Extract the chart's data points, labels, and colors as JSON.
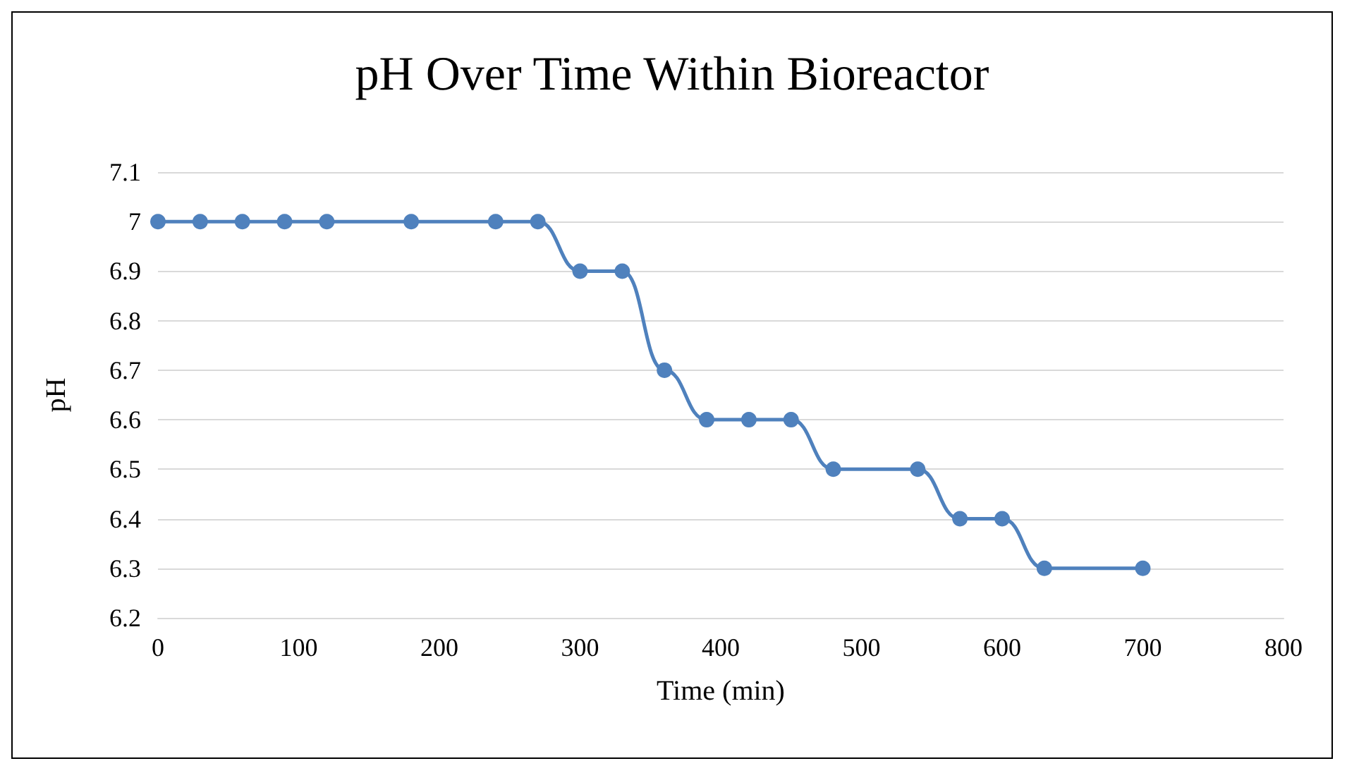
{
  "chart_data": {
    "type": "line",
    "title": "pH Over Time Within Bioreactor",
    "xlabel": "Time (min)",
    "ylabel": "pH",
    "x": [
      0,
      30,
      60,
      90,
      120,
      180,
      240,
      270,
      300,
      330,
      360,
      390,
      420,
      450,
      480,
      540,
      570,
      600,
      630,
      700
    ],
    "series": [
      {
        "color": "#4f81bd",
        "values": [
          7,
          7,
          7,
          7,
          7,
          7,
          7,
          7,
          6.9,
          6.9,
          6.7,
          6.6,
          6.6,
          6.6,
          6.5,
          6.5,
          6.4,
          6.4,
          6.3,
          6.3
        ]
      }
    ],
    "xlim": [
      0,
      800
    ],
    "xticks": [
      0,
      100,
      200,
      300,
      400,
      500,
      600,
      700,
      800
    ],
    "ylim": [
      6.2,
      7.1
    ],
    "yticks": [
      6.2,
      6.3,
      6.4,
      6.5,
      6.6,
      6.7,
      6.8,
      6.9,
      7,
      7.1
    ],
    "grid": "y",
    "marker": "circle",
    "line_style": "solid"
  }
}
